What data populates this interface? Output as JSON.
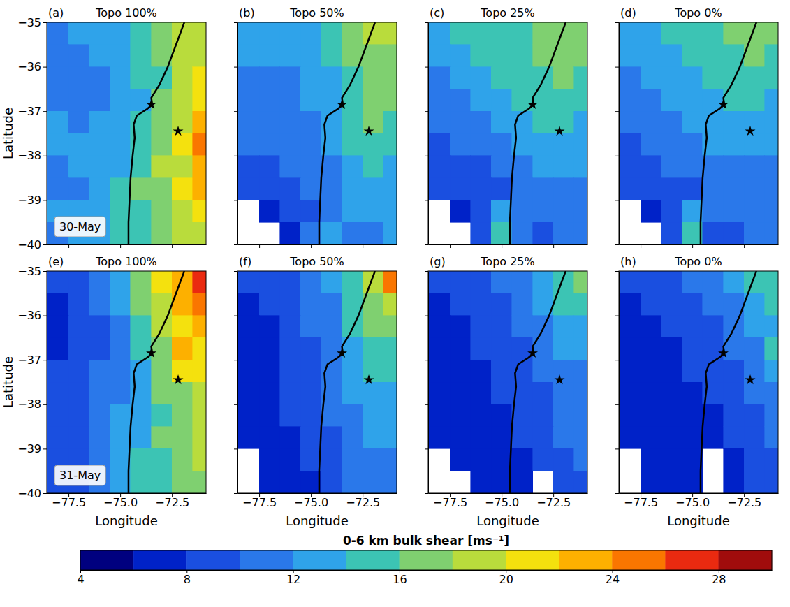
{
  "chart_data": {
    "type": "heatmap",
    "xlabel": "Longitude",
    "ylabel": "Latitude",
    "xlim": [
      -78.55,
      -70.85
    ],
    "ylim": [
      -40,
      -35
    ],
    "xticks": [
      {
        "value": -77.5,
        "label": "−77.5"
      },
      {
        "value": -75.0,
        "label": "−75.0"
      },
      {
        "value": -72.5,
        "label": "−72.5"
      }
    ],
    "yticks": [
      {
        "value": -35,
        "label": "−35"
      },
      {
        "value": -36,
        "label": "−36"
      },
      {
        "value": -37,
        "label": "−37"
      },
      {
        "value": -38,
        "label": "−38"
      },
      {
        "value": -39,
        "label": "−39"
      },
      {
        "value": -40,
        "label": "−40"
      }
    ],
    "lon": [
      -78,
      -77,
      -76,
      -75,
      -74,
      -73,
      -72,
      -71
    ],
    "lat": [
      -35.25,
      -35.75,
      -36.25,
      -36.75,
      -37.25,
      -37.75,
      -38.25,
      -38.75,
      -39.25,
      -39.75
    ],
    "coastline": {
      "lon": [
        -71.9,
        -72.3,
        -72.7,
        -73.1,
        -73.5,
        -73.45,
        -73.7,
        -74.2,
        -74.35,
        -74.3,
        -74.4,
        -74.5,
        -74.55,
        -74.6,
        -74.6
      ],
      "lat": [
        -35,
        -35.5,
        -36,
        -36.4,
        -36.7,
        -36.85,
        -36.95,
        -37.1,
        -37.3,
        -37.6,
        -38,
        -38.5,
        -39,
        -39.5,
        -40
      ]
    },
    "markers": {
      "lon": [
        -73.5,
        -72.2
      ],
      "lat": [
        -36.85,
        -37.45
      ],
      "marker": "star"
    },
    "colorbar": {
      "label": "0-6 km bulk shear [ms⁻¹]",
      "range": [
        4,
        30
      ],
      "ticks": [
        4,
        8,
        12,
        16,
        20,
        24,
        28
      ],
      "levels": [
        4,
        6,
        8,
        10,
        12,
        14,
        16,
        18,
        20,
        22,
        24,
        26,
        28,
        30
      ],
      "colors": [
        "#00007f",
        "#0022c8",
        "#1a4fe0",
        "#2a78ea",
        "#2fa3ea",
        "#3cc4b4",
        "#7fd070",
        "#b9dc3c",
        "#f4e10e",
        "#fdb000",
        "#fa7600",
        "#ea2a10",
        "#a00c0c"
      ]
    },
    "panels": [
      {
        "letter": "(a)",
        "title": "Topo 100%",
        "date": "30-May",
        "tick_labels": "y",
        "values": [
          [
            11,
            12,
            12,
            13,
            14,
            16,
            19,
            18
          ],
          [
            11,
            11,
            12,
            13,
            14,
            16,
            18,
            19
          ],
          [
            10,
            10,
            11,
            12,
            14,
            15,
            18,
            20
          ],
          [
            11,
            10,
            11,
            12,
            13,
            16,
            19,
            20
          ],
          [
            12,
            11,
            12,
            12,
            14,
            17,
            19,
            22
          ],
          [
            12,
            12,
            12,
            13,
            15,
            17,
            20,
            24
          ],
          [
            11,
            12,
            12,
            13,
            14,
            18,
            19,
            23
          ],
          [
            11,
            11,
            12,
            14,
            16,
            17,
            20,
            22
          ],
          [
            12,
            12,
            13,
            14,
            15,
            17,
            19,
            21
          ],
          [
            11,
            12,
            13,
            14,
            15,
            16,
            18,
            19
          ]
        ]
      },
      {
        "letter": "(b)",
        "title": "Topo 50%",
        "tick_labels": false,
        "values": [
          [
            12,
            12,
            12,
            13,
            14,
            16,
            18,
            18
          ],
          [
            12,
            12,
            12,
            13,
            14,
            16,
            17,
            17
          ],
          [
            11,
            11,
            11,
            12,
            13,
            15,
            16,
            17
          ],
          [
            11,
            10,
            11,
            12,
            13,
            15,
            17,
            16
          ],
          [
            10,
            10,
            11,
            11,
            12,
            14,
            16,
            15
          ],
          [
            10,
            10,
            10,
            11,
            12,
            14,
            15,
            14
          ],
          [
            9,
            9,
            10,
            10,
            11,
            13,
            14,
            13
          ],
          [
            9,
            8,
            9,
            10,
            11,
            12,
            13,
            13
          ],
          [
            null,
            7,
            8,
            9,
            10,
            12,
            12,
            12
          ],
          [
            null,
            null,
            7,
            10,
            12,
            10,
            11,
            12
          ]
        ]
      },
      {
        "letter": "(c)",
        "title": "Topo 25%",
        "tick_labels": false,
        "values": [
          [
            13,
            14,
            14,
            15,
            15,
            16,
            17,
            17
          ],
          [
            12,
            13,
            14,
            15,
            15,
            16,
            17,
            16
          ],
          [
            11,
            12,
            13,
            14,
            14,
            15,
            16,
            15
          ],
          [
            10,
            11,
            12,
            13,
            14,
            15,
            15,
            14
          ],
          [
            10,
            10,
            11,
            12,
            13,
            14,
            14,
            13
          ],
          [
            9,
            10,
            10,
            11,
            12,
            13,
            13,
            12
          ],
          [
            9,
            9,
            9,
            10,
            11,
            12,
            12,
            12
          ],
          [
            8,
            8,
            8,
            9,
            10,
            11,
            11,
            11
          ],
          [
            null,
            7,
            8,
            12,
            10,
            10,
            11,
            11
          ],
          [
            null,
            null,
            8,
            14,
            10,
            9,
            10,
            10
          ]
        ]
      },
      {
        "letter": "(d)",
        "title": "Topo 0%",
        "tick_labels": false,
        "values": [
          [
            12,
            13,
            14,
            14,
            15,
            16,
            17,
            16
          ],
          [
            12,
            12,
            13,
            14,
            14,
            15,
            16,
            15
          ],
          [
            11,
            12,
            12,
            13,
            14,
            15,
            15,
            14
          ],
          [
            10,
            11,
            12,
            13,
            13,
            14,
            14,
            13
          ],
          [
            10,
            10,
            11,
            12,
            12,
            13,
            13,
            12
          ],
          [
            9,
            10,
            10,
            11,
            12,
            12,
            12,
            12
          ],
          [
            9,
            9,
            10,
            10,
            11,
            11,
            11,
            11
          ],
          [
            8,
            8,
            9,
            9,
            10,
            11,
            11,
            11
          ],
          [
            null,
            7,
            9,
            12,
            10,
            10,
            10,
            10
          ],
          [
            null,
            null,
            8,
            14,
            9,
            9,
            10,
            10
          ]
        ]
      },
      {
        "letter": "(e)",
        "title": "Topo 100%",
        "date": "31-May",
        "values": [
          [
            8,
            9,
            10,
            12,
            16,
            20,
            22,
            26
          ],
          [
            7,
            8,
            10,
            12,
            16,
            19,
            22,
            24
          ],
          [
            7,
            8,
            9,
            11,
            14,
            18,
            20,
            22
          ],
          [
            7,
            8,
            9,
            11,
            14,
            17,
            22,
            20
          ],
          [
            8,
            8,
            10,
            11,
            13,
            16,
            20,
            21
          ],
          [
            8,
            9,
            10,
            11,
            13,
            16,
            17,
            18
          ],
          [
            8,
            9,
            10,
            12,
            13,
            15,
            16,
            18
          ],
          [
            8,
            9,
            11,
            12,
            13,
            16,
            17,
            19
          ],
          [
            8,
            9,
            11,
            12,
            14,
            15,
            16,
            18
          ],
          [
            8,
            9,
            11,
            13,
            14,
            15,
            16,
            17
          ]
        ]
      },
      {
        "letter": "(f)",
        "title": "Topo 50%",
        "tick_labels": "x",
        "values": [
          [
            8,
            8,
            9,
            10,
            12,
            15,
            18,
            24
          ],
          [
            7,
            8,
            8,
            10,
            11,
            15,
            17,
            18
          ],
          [
            7,
            7,
            8,
            10,
            11,
            14,
            16,
            16
          ],
          [
            7,
            7,
            8,
            9,
            11,
            13,
            15,
            15
          ],
          [
            6,
            7,
            8,
            9,
            10,
            12,
            14,
            14
          ],
          [
            6,
            7,
            8,
            9,
            10,
            12,
            13,
            13
          ],
          [
            6,
            7,
            8,
            9,
            10,
            11,
            12,
            12
          ],
          [
            6,
            7,
            7,
            8,
            9,
            11,
            12,
            12
          ],
          [
            null,
            6,
            7,
            8,
            9,
            10,
            11,
            11
          ],
          [
            null,
            6,
            6,
            7,
            8,
            10,
            11,
            11
          ]
        ]
      },
      {
        "letter": "(g)",
        "title": "Topo 25%",
        "tick_labels": "x",
        "values": [
          [
            8,
            8,
            9,
            10,
            11,
            13,
            15,
            16
          ],
          [
            7,
            8,
            8,
            9,
            10,
            12,
            14,
            14
          ],
          [
            7,
            7,
            8,
            9,
            10,
            11,
            13,
            13
          ],
          [
            7,
            7,
            8,
            8,
            9,
            11,
            12,
            12
          ],
          [
            6,
            7,
            7,
            8,
            9,
            10,
            11,
            11
          ],
          [
            6,
            6,
            7,
            8,
            8,
            9,
            10,
            11
          ],
          [
            6,
            6,
            7,
            7,
            8,
            9,
            10,
            10
          ],
          [
            6,
            6,
            6,
            7,
            8,
            9,
            10,
            10
          ],
          [
            null,
            6,
            6,
            7,
            7,
            8,
            9,
            10
          ],
          [
            null,
            null,
            6,
            6,
            7,
            null,
            9,
            9
          ]
        ]
      },
      {
        "letter": "(h)",
        "title": "Topo 0%",
        "tick_labels": "x",
        "values": [
          [
            8,
            8,
            9,
            10,
            11,
            12,
            14,
            15
          ],
          [
            7,
            8,
            8,
            9,
            10,
            11,
            13,
            14
          ],
          [
            7,
            7,
            8,
            9,
            9,
            10,
            12,
            13
          ],
          [
            7,
            7,
            7,
            8,
            9,
            10,
            11,
            15
          ],
          [
            6,
            7,
            7,
            8,
            8,
            9,
            10,
            12
          ],
          [
            6,
            6,
            7,
            7,
            8,
            9,
            10,
            11
          ],
          [
            6,
            6,
            7,
            7,
            7,
            8,
            9,
            10
          ],
          [
            6,
            6,
            6,
            7,
            7,
            8,
            9,
            10
          ],
          [
            null,
            6,
            6,
            6,
            null,
            7,
            8,
            9
          ],
          [
            null,
            6,
            6,
            6,
            null,
            7,
            8,
            9
          ]
        ]
      }
    ]
  }
}
